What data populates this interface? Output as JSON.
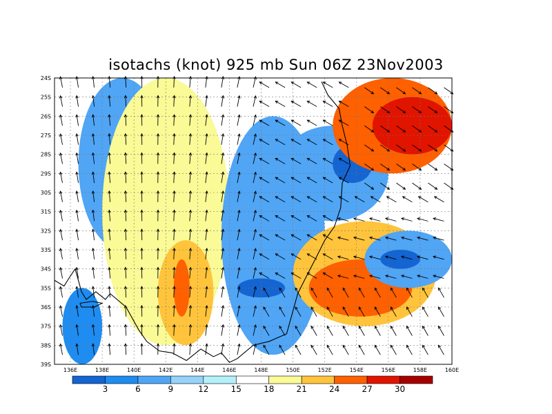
{
  "title": "isotachs (knot) 925 mb Sun 06Z 23Nov2003",
  "lon_labels": [
    "136E",
    "138E",
    "140E",
    "142E",
    "144E",
    "146E",
    "148E",
    "150E",
    "152E",
    "154E",
    "156E",
    "158E",
    "160E"
  ],
  "lat_labels": [
    "24S",
    "25S",
    "26S",
    "27S",
    "28S",
    "29S",
    "30S",
    "31S",
    "32S",
    "33S",
    "34S",
    "35S",
    "36S",
    "37S",
    "38S",
    "39S"
  ],
  "colorbar": {
    "labels": [
      "3",
      "6",
      "9",
      "12",
      "15",
      "18",
      "21",
      "24",
      "27",
      "30"
    ],
    "colors": [
      "#1464d2",
      "#1e8cf0",
      "#50a5f5",
      "#96d2fa",
      "#b4f0fa",
      "#ffffff",
      "#fafa96",
      "#ffc43c",
      "#ff6000",
      "#e11400",
      "#a50000"
    ]
  },
  "speed_regions": [
    {
      "level": 1,
      "lon": [
        135.5,
        138.0
      ],
      "lat": [
        -35.0,
        -39.0
      ]
    },
    {
      "level": 2,
      "lon": [
        136.5,
        142.0
      ],
      "lat": [
        -24.0,
        -33.0
      ]
    },
    {
      "level": 6,
      "lon": [
        138.0,
        146.0
      ],
      "lat": [
        -24.0,
        -38.0
      ]
    },
    {
      "level": 7,
      "lon": [
        141.5,
        145.0
      ],
      "lat": [
        -32.5,
        -38.0
      ]
    },
    {
      "level": 8,
      "lon": [
        142.5,
        143.5
      ],
      "lat": [
        -33.5,
        -36.5
      ]
    },
    {
      "level": 2,
      "lon": [
        145.5,
        152.0
      ],
      "lat": [
        -26.0,
        -38.5
      ]
    },
    {
      "level": 0,
      "lon": [
        146.5,
        149.5
      ],
      "lat": [
        -34.5,
        -35.5
      ]
    },
    {
      "level": 2,
      "lon": [
        149.0,
        156.0
      ],
      "lat": [
        -26.5,
        -31.5
      ]
    },
    {
      "level": 0,
      "lon": [
        152.5,
        155.0
      ],
      "lat": [
        -27.5,
        -29.5
      ]
    },
    {
      "level": 7,
      "lon": [
        150.0,
        159.0
      ],
      "lat": [
        -31.5,
        -37.0
      ]
    },
    {
      "level": 8,
      "lon": [
        151.0,
        157.5
      ],
      "lat": [
        -33.5,
        -36.5
      ]
    },
    {
      "level": 2,
      "lon": [
        154.5,
        160.0
      ],
      "lat": [
        -32.0,
        -35.0
      ]
    },
    {
      "level": 0,
      "lon": [
        155.5,
        158.0
      ],
      "lat": [
        -33.0,
        -34.0
      ]
    },
    {
      "level": 8,
      "lon": [
        152.5,
        160.0
      ],
      "lat": [
        -24.0,
        -29.0
      ]
    },
    {
      "level": 9,
      "lon": [
        155.0,
        160.0
      ],
      "lat": [
        -25.0,
        -28.0
      ]
    }
  ]
}
